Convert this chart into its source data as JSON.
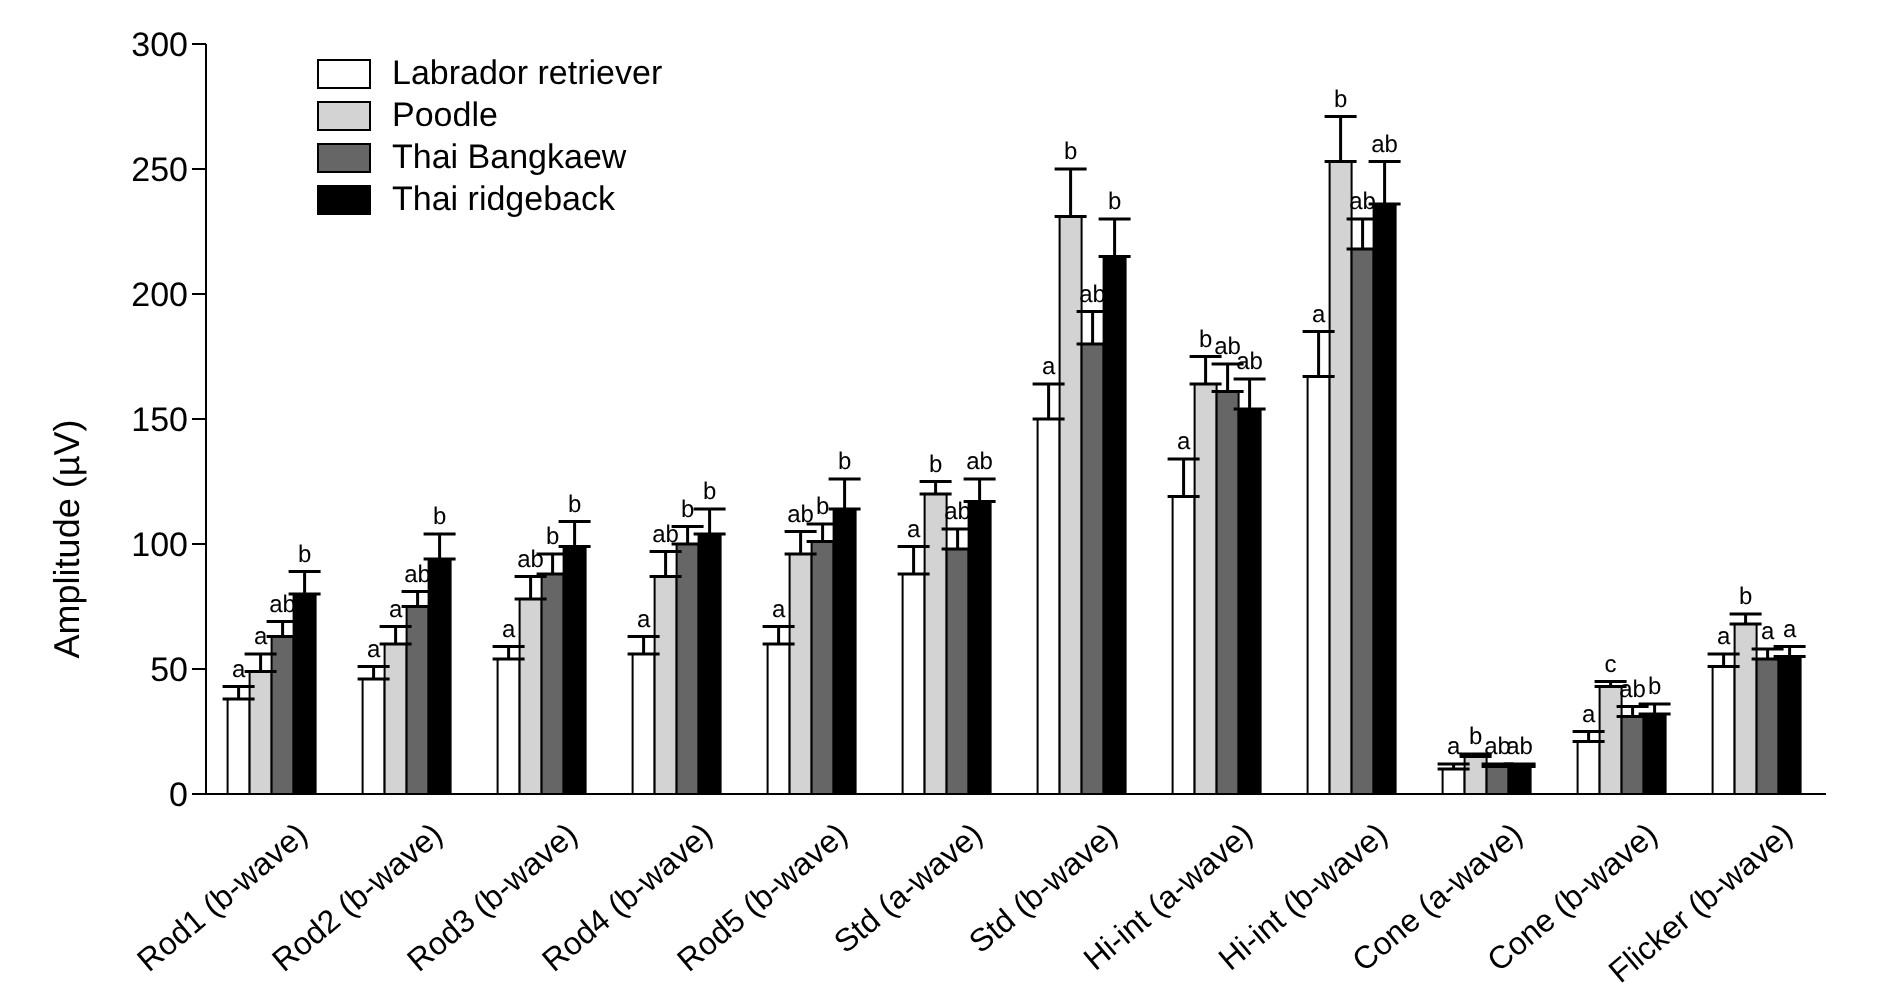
{
  "chart_data": {
    "type": "bar",
    "ylabel": "Amplitude (µV)",
    "categories": [
      "Rod1 (b-wave)",
      "Rod2 (b-wave)",
      "Rod3 (b-wave)",
      "Rod4 (b-wave)",
      "Rod5 (b-wave)",
      "Std (a-wave)",
      "Std (b-wave)",
      "Hi-int (a-wave)",
      "Hi-int (b-wave)",
      "Cone (a-wave)",
      "Cone (b-wave)",
      "Flicker (b-wave)"
    ],
    "series": [
      {
        "name": "Labrador retriever",
        "color": "#ffffff",
        "values": [
          38,
          46,
          54,
          56,
          60,
          88,
          150,
          119,
          167,
          10,
          21,
          51
        ],
        "errors": [
          5,
          5,
          5,
          7,
          7,
          11,
          14,
          15,
          18,
          2,
          4,
          5
        ],
        "value_labels": [
          "a",
          "a",
          "a",
          "a",
          "a",
          "a",
          "a",
          "a",
          "a",
          "a",
          "a",
          "a"
        ]
      },
      {
        "name": "Poodle",
        "color": "#d3d3d3",
        "values": [
          49,
          60,
          78,
          87,
          96,
          120,
          231,
          164,
          253,
          15,
          43,
          68
        ],
        "errors": [
          7,
          7,
          9,
          10,
          9,
          5,
          19,
          11,
          18,
          1,
          2,
          4
        ],
        "value_labels": [
          "a",
          "a",
          "ab",
          "ab",
          "ab",
          "b",
          "b",
          "b",
          "b",
          "b",
          "c",
          "b"
        ]
      },
      {
        "name": "Thai Bangkaew",
        "color": "#666666",
        "values": [
          63,
          75,
          88,
          100,
          101,
          98,
          180,
          161,
          218,
          11,
          31,
          54
        ],
        "errors": [
          6,
          6,
          8,
          7,
          7,
          8,
          13,
          11,
          12,
          1,
          4,
          4
        ],
        "value_labels": [
          "ab",
          "ab",
          "b",
          "b",
          "b",
          "ab",
          "ab",
          "ab",
          "ab",
          "ab",
          "ab",
          "a"
        ]
      },
      {
        "name": "Thai ridgeback",
        "color": "#000000",
        "values": [
          80,
          94,
          99,
          104,
          114,
          117,
          215,
          154,
          236,
          11,
          32,
          55
        ],
        "errors": [
          9,
          10,
          10,
          10,
          12,
          9,
          15,
          12,
          17,
          1,
          4,
          4
        ],
        "value_labels": [
          "b",
          "b",
          "b",
          "b",
          "b",
          "ab",
          "b",
          "ab",
          "ab",
          "ab",
          "b",
          "a"
        ]
      }
    ],
    "ylim": [
      0,
      300
    ],
    "yticks": [
      0,
      50,
      100,
      150,
      200,
      250,
      300
    ],
    "legend": "top left"
  }
}
